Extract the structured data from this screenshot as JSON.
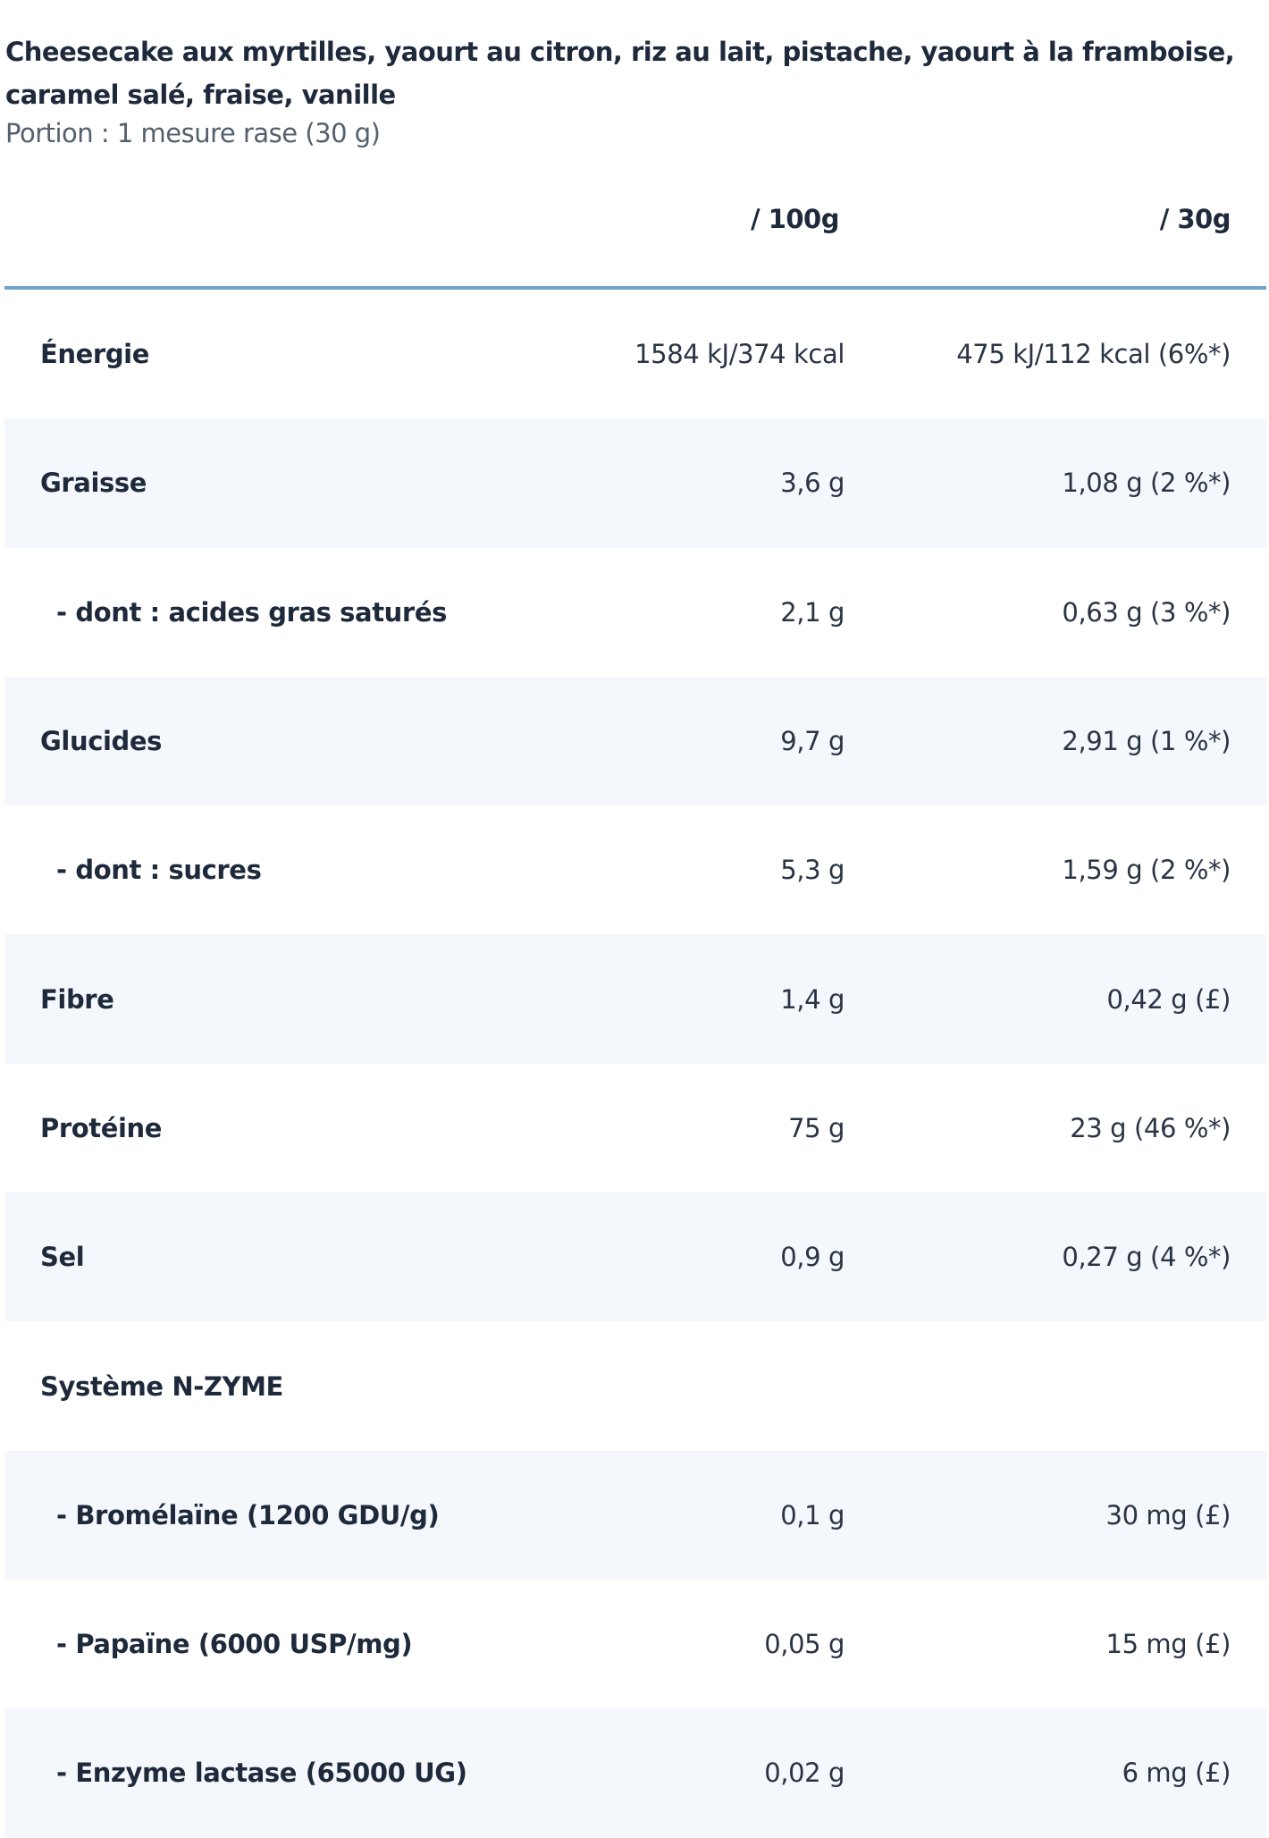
{
  "product": {
    "flavours": "Cheesecake aux myrtilles, yaourt au citron, riz au lait, pistache, yaourt à la framboise, caramel salé, fraise, vanille",
    "portion": "Portion : 1 mesure rase (30 g)"
  },
  "table": {
    "columns": [
      "/ 100g",
      "/ 30g"
    ],
    "rows": [
      {
        "label": "Énergie",
        "per100": "1584 kJ/374 kcal",
        "perServing": "475 kJ/112 kcal (6%*)",
        "sub": false
      },
      {
        "label": "Graisse",
        "per100": "3,6 g",
        "perServing": "1,08 g (2 %*)",
        "sub": false
      },
      {
        "label": "- dont : acides gras saturés",
        "per100": "2,1 g",
        "perServing": "0,63 g (3 %*)",
        "sub": true
      },
      {
        "label": "Glucides",
        "per100": "9,7 g",
        "perServing": "2,91 g (1 %*)",
        "sub": false
      },
      {
        "label": "- dont : sucres",
        "per100": "5,3 g",
        "perServing": "1,59 g (2 %*)",
        "sub": true
      },
      {
        "label": "Fibre",
        "per100": "1,4 g",
        "perServing": "0,42 g (£)",
        "sub": false
      },
      {
        "label": "Protéine",
        "per100": "75 g",
        "perServing": "23 g (46 %*)",
        "sub": false
      },
      {
        "label": "Sel",
        "per100": "0,9 g",
        "perServing": "0,27 g (4 %*)",
        "sub": false
      },
      {
        "label": "Système N-ZYME",
        "per100": "",
        "perServing": "",
        "sub": false
      },
      {
        "label": "- Bromélaïne (1200 GDU/g)",
        "per100": "0,1 g",
        "perServing": "30 mg (£)",
        "sub": true
      },
      {
        "label": "- Papaïne (6000 USP/mg)",
        "per100": "0,05 g",
        "perServing": "15 mg (£)",
        "sub": true
      },
      {
        "label": "- Enzyme lactase (65000 UG)",
        "per100": "0,02 g",
        "perServing": "6 mg (£)",
        "sub": true
      }
    ]
  },
  "colors": {
    "text": "#1e2a3b",
    "rule": "#73a3cb",
    "stripe": "#f4f7fb"
  }
}
